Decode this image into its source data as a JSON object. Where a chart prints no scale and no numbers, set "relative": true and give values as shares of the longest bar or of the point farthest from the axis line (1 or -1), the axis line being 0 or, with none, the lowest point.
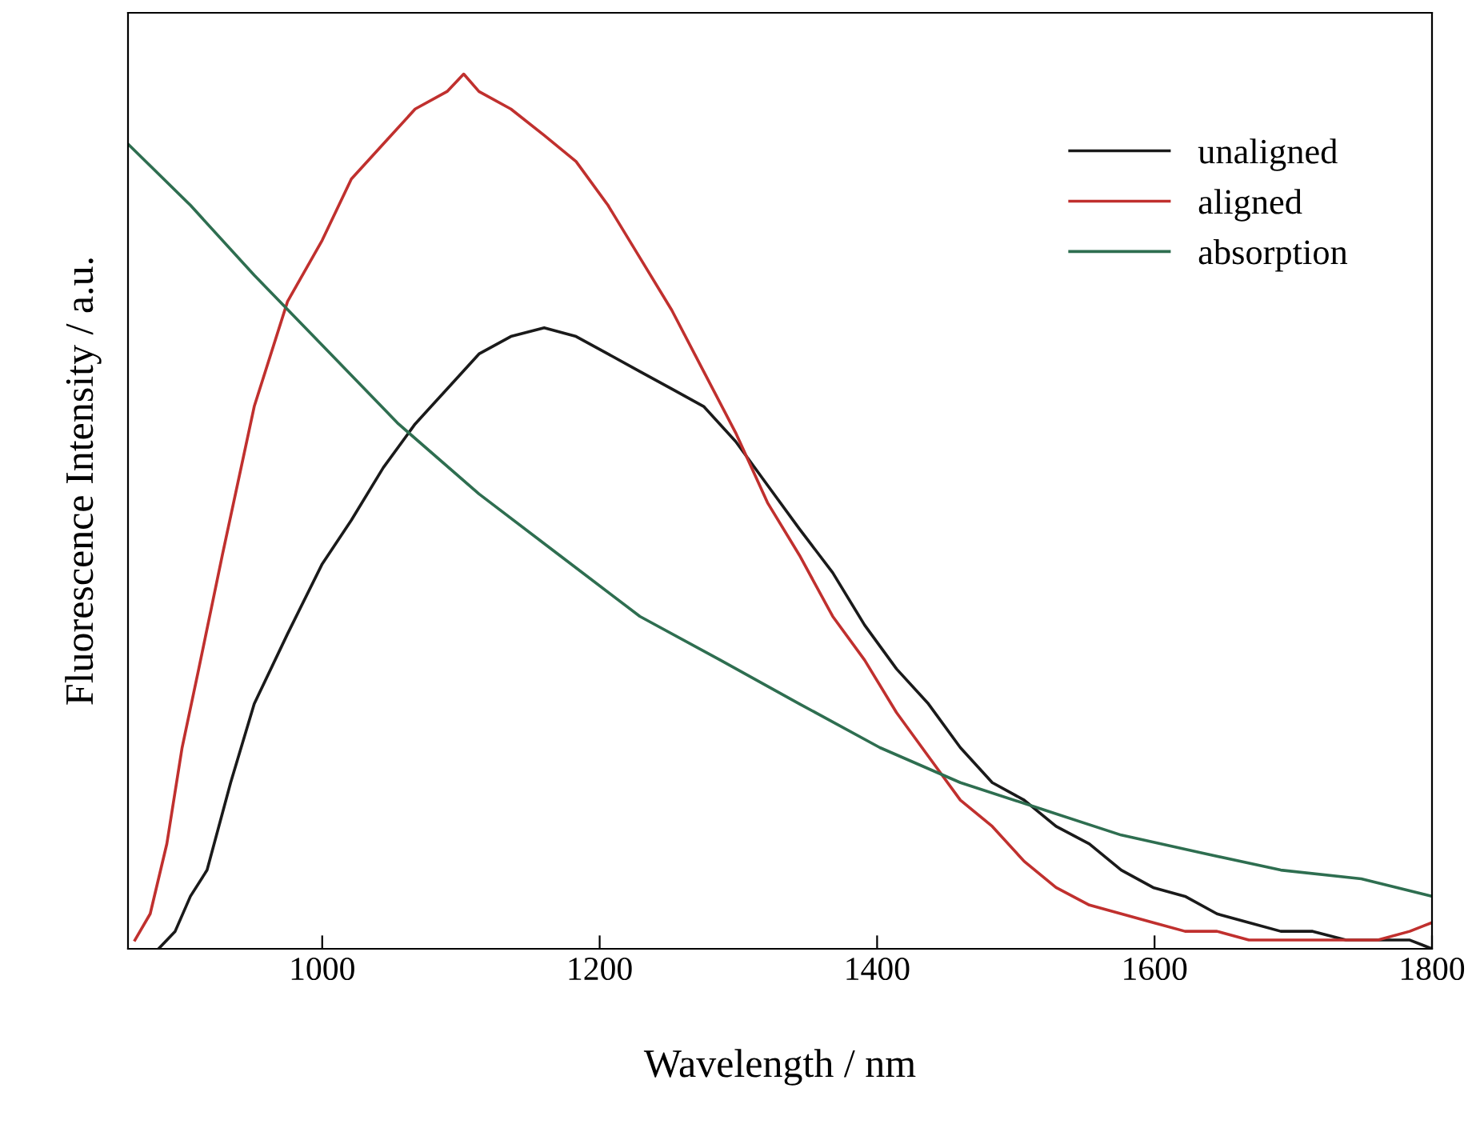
{
  "chart_data": {
    "type": "line",
    "relative": true,
    "xlabel": "Wavelength / nm",
    "ylabel": "Fluorescence Intensity / a.u.",
    "xlim": [
      860,
      1800
    ],
    "xticks": [
      1000,
      1200,
      1400,
      1600,
      1800
    ],
    "legend": "top right",
    "grid": false,
    "marker": "none",
    "line_style": "solid",
    "series": [
      {
        "name": "unaligned",
        "color": "#1a1a1a",
        "x": [
          882,
          894,
          905,
          917,
          934,
          951,
          975,
          1000,
          1021,
          1044,
          1067,
          1090,
          1113,
          1136,
          1160,
          1183,
          1206,
          1229,
          1252,
          1275,
          1298,
          1321,
          1344,
          1368,
          1391,
          1414,
          1437,
          1460,
          1483,
          1506,
          1529,
          1553,
          1576,
          1599,
          1622,
          1645,
          1668,
          1691,
          1714,
          1738,
          1761,
          1784,
          1800
        ],
        "values": [
          0,
          0.02,
          0.06,
          0.09,
          0.19,
          0.28,
          0.36,
          0.44,
          0.49,
          0.55,
          0.6,
          0.64,
          0.68,
          0.7,
          0.71,
          0.7,
          0.68,
          0.66,
          0.64,
          0.62,
          0.58,
          0.53,
          0.48,
          0.43,
          0.37,
          0.32,
          0.28,
          0.23,
          0.19,
          0.17,
          0.14,
          0.12,
          0.09,
          0.07,
          0.06,
          0.04,
          0.03,
          0.02,
          0.02,
          0.01,
          0.01,
          0.01,
          0.0
        ]
      },
      {
        "name": "aligned",
        "color": "#c0302e",
        "x": [
          865,
          876,
          888,
          899,
          911,
          928,
          951,
          975,
          1000,
          1021,
          1044,
          1067,
          1090,
          1102,
          1113,
          1136,
          1160,
          1183,
          1206,
          1229,
          1252,
          1275,
          1298,
          1321,
          1344,
          1368,
          1391,
          1414,
          1437,
          1460,
          1483,
          1506,
          1529,
          1553,
          1576,
          1599,
          1622,
          1645,
          1668,
          1691,
          1714,
          1738,
          1761,
          1784,
          1800
        ],
        "values": [
          0.01,
          0.04,
          0.12,
          0.23,
          0.32,
          0.45,
          0.62,
          0.74,
          0.81,
          0.88,
          0.92,
          0.96,
          0.98,
          1.0,
          0.98,
          0.96,
          0.93,
          0.9,
          0.85,
          0.79,
          0.73,
          0.66,
          0.59,
          0.51,
          0.45,
          0.38,
          0.33,
          0.27,
          0.22,
          0.17,
          0.14,
          0.1,
          0.07,
          0.05,
          0.04,
          0.03,
          0.02,
          0.02,
          0.01,
          0.01,
          0.01,
          0.01,
          0.01,
          0.02,
          0.03
        ]
      },
      {
        "name": "absorption",
        "color": "#2e6e50",
        "x": [
          860,
          905,
          951,
          1000,
          1055,
          1113,
          1171,
          1229,
          1287,
          1344,
          1402,
          1460,
          1518,
          1576,
          1633,
          1691,
          1749,
          1800
        ],
        "values": [
          0.92,
          0.85,
          0.77,
          0.69,
          0.6,
          0.52,
          0.45,
          0.38,
          0.33,
          0.28,
          0.23,
          0.19,
          0.16,
          0.13,
          0.11,
          0.09,
          0.08,
          0.06
        ]
      }
    ]
  }
}
